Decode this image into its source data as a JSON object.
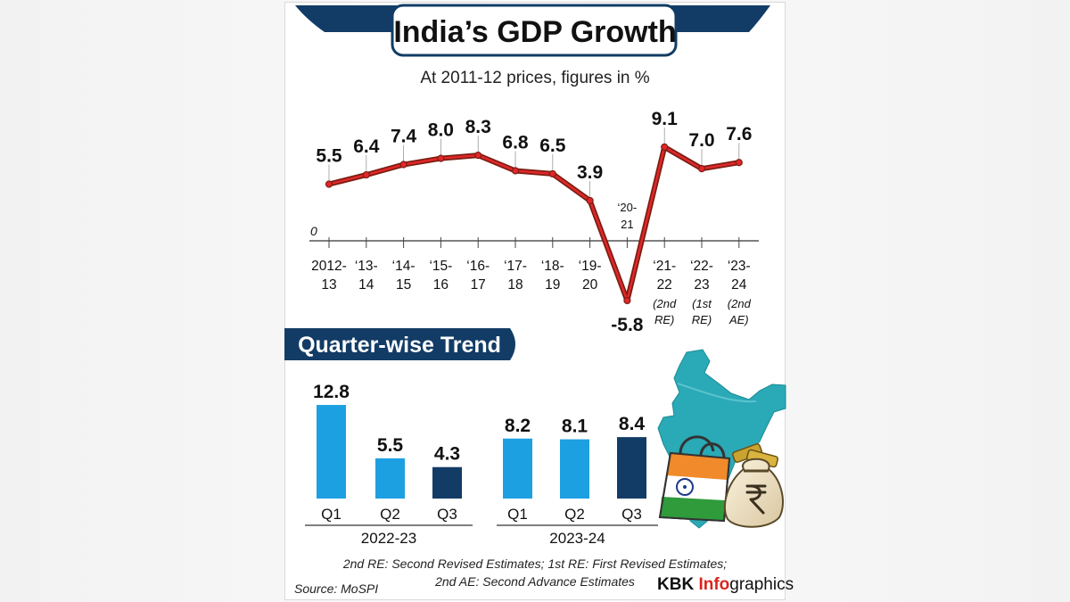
{
  "title": "India’s GDP Growth",
  "subtitle": "At 2011-12 prices, figures in %",
  "chart_data": [
    {
      "type": "line",
      "title": "India’s GDP Growth",
      "subtitle": "At 2011-12 prices, figures in %",
      "zero_label": "0",
      "categories": [
        [
          "2012-",
          "13"
        ],
        [
          "‘13-",
          "14"
        ],
        [
          "‘14-",
          "15"
        ],
        [
          "‘15-",
          "16"
        ],
        [
          "‘16-",
          "17"
        ],
        [
          "‘17-",
          "18"
        ],
        [
          "‘18-",
          "19"
        ],
        [
          "‘19-",
          "20"
        ],
        [
          "‘20-",
          "21"
        ],
        [
          "‘21-",
          "22",
          "(2nd",
          "RE)"
        ],
        [
          "‘22-",
          "23",
          "(1st",
          "RE)"
        ],
        [
          "‘23-",
          "24",
          "(2nd",
          "AE)"
        ]
      ],
      "values": [
        5.5,
        6.4,
        7.4,
        8.0,
        8.3,
        6.8,
        6.5,
        3.9,
        -5.8,
        9.1,
        7.0,
        7.6
      ],
      "labels": [
        "5.5",
        "6.4",
        "7.4",
        "8.0",
        "8.3",
        "6.8",
        "6.5",
        "3.9",
        "-5.8",
        "9.1",
        "7.0",
        "7.6"
      ],
      "ylim": [
        -7,
        10
      ],
      "line_color": "#7a1f12",
      "marker_color": "#e3262b"
    },
    {
      "type": "bar",
      "title": "Quarter-wise Trend",
      "groups": [
        {
          "name": "2022-23",
          "categories": [
            "Q1",
            "Q2",
            "Q3"
          ],
          "values": [
            12.8,
            5.5,
            4.3
          ],
          "labels": [
            "12.8",
            "5.5",
            "4.3"
          ]
        },
        {
          "name": "2023-24",
          "categories": [
            "Q1",
            "Q2",
            "Q3"
          ],
          "values": [
            8.2,
            8.1,
            8.4
          ],
          "labels": [
            "8.2",
            "8.1",
            "8.4"
          ]
        }
      ],
      "colors": {
        "q1_q2": "#1da0e2",
        "q3": "#123c66"
      },
      "ylim": [
        0,
        13
      ]
    }
  ],
  "notes": {
    "line1": "2nd RE: Second Revised Estimates; 1st RE: First Revised Estimates;",
    "line2": "2nd AE: Second Advance Estimates",
    "source": "Source: MoSPI"
  },
  "brand": {
    "part1": "KBK ",
    "part2": "Info",
    "part3": "graphics",
    "accent": "#d7261e"
  },
  "colors": {
    "navy": "#123c66",
    "bar_light": "#1da0e2",
    "map": "#2aa9b6",
    "red": "#e3262b"
  },
  "icons": [
    "india-map-icon",
    "shopping-bag-icon",
    "money-bag-icon",
    "rupee-icon"
  ]
}
